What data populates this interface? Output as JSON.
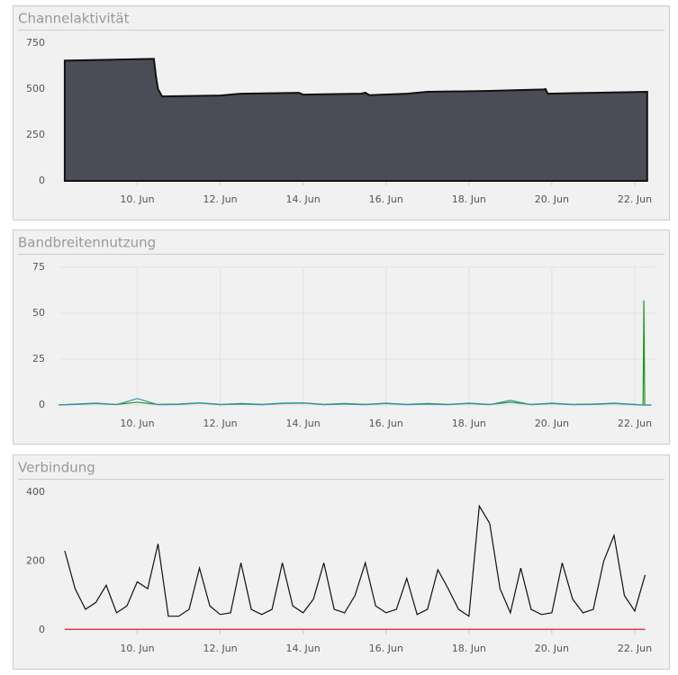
{
  "chart_data": [
    {
      "type": "area",
      "title": "Channelaktivität",
      "x": [
        8.25,
        10.4,
        10.45,
        10.5,
        10.6,
        12.0,
        12.5,
        13.9,
        14.0,
        15.4,
        15.5,
        15.6,
        16.5,
        17.0,
        18.5,
        19.8,
        19.85,
        19.9,
        21.0,
        22.3
      ],
      "series": [
        {
          "color": "#4a4d56",
          "values": [
            655,
            665,
            570,
            500,
            460,
            465,
            475,
            480,
            470,
            475,
            480,
            467,
            475,
            485,
            490,
            498,
            500,
            475,
            480,
            485
          ]
        }
      ],
      "xlim": [
        8.1,
        22.5
      ],
      "xticks": [
        {
          "value": 10,
          "label": "10. Jun"
        },
        {
          "value": 12,
          "label": "12. Jun"
        },
        {
          "value": 14,
          "label": "14. Jun"
        },
        {
          "value": 16,
          "label": "16. Jun"
        },
        {
          "value": 18,
          "label": "18. Jun"
        },
        {
          "value": 20,
          "label": "20. Jun"
        },
        {
          "value": 22,
          "label": "22. Jun"
        }
      ],
      "ylim": [
        0,
        750
      ],
      "yticks": [
        0,
        250,
        500,
        750
      ],
      "grid": false
    },
    {
      "type": "line",
      "title": "Bandbreitennutzung",
      "x": [
        8.1,
        8.5,
        9,
        9.5,
        10,
        10.5,
        11,
        11.5,
        12,
        12.5,
        13,
        13.5,
        14,
        14.5,
        15,
        15.5,
        16,
        16.5,
        17,
        17.5,
        18,
        18.5,
        19,
        19.5,
        20,
        20.5,
        21,
        21.5,
        22,
        22.2,
        22.22,
        22.24,
        22.4
      ],
      "series": [
        {
          "color": "#1a9a1a",
          "values": [
            0,
            0.5,
            1,
            0.3,
            1.5,
            0.3,
            0.5,
            1.2,
            0.3,
            0.8,
            0.3,
            1,
            1.2,
            0.3,
            0.8,
            0.3,
            1,
            0.3,
            0.8,
            0.3,
            1,
            0.3,
            1.5,
            0.3,
            1,
            0.3,
            0.5,
            1,
            0.3,
            0,
            57,
            0,
            0
          ]
        },
        {
          "color": "#3a8fb0",
          "values": [
            0,
            0.3,
            0.8,
            0.2,
            3.5,
            0.2,
            0.3,
            1,
            0.2,
            0.5,
            0.2,
            0.8,
            1,
            0.2,
            0.5,
            0.2,
            0.8,
            0.2,
            0.5,
            0.2,
            0.8,
            0.2,
            2.5,
            0.2,
            0.8,
            0.2,
            0.3,
            0.8,
            0.2,
            0,
            0,
            0,
            0
          ]
        }
      ],
      "xlim": [
        8.1,
        22.5
      ],
      "xticks": [
        {
          "value": 10,
          "label": "10. Jun"
        },
        {
          "value": 12,
          "label": "12. Jun"
        },
        {
          "value": 14,
          "label": "14. Jun"
        },
        {
          "value": 16,
          "label": "16. Jun"
        },
        {
          "value": 18,
          "label": "18. Jun"
        },
        {
          "value": 20,
          "label": "20. Jun"
        },
        {
          "value": 22,
          "label": "22. Jun"
        }
      ],
      "ylim": [
        0,
        75
      ],
      "yticks": [
        0,
        25,
        50,
        75
      ],
      "grid": true
    },
    {
      "type": "line",
      "title": "Verbindung",
      "x": [
        8.25,
        8.5,
        8.75,
        9,
        9.25,
        9.5,
        9.75,
        10,
        10.25,
        10.5,
        10.75,
        11,
        11.25,
        11.5,
        11.75,
        12,
        12.25,
        12.5,
        12.75,
        13,
        13.25,
        13.5,
        13.75,
        14,
        14.25,
        14.5,
        14.75,
        15,
        15.25,
        15.5,
        15.75,
        16,
        16.25,
        16.5,
        16.75,
        17,
        17.25,
        17.5,
        17.75,
        18,
        18.25,
        18.5,
        18.75,
        19,
        19.25,
        19.5,
        19.75,
        20,
        20.25,
        20.5,
        20.75,
        21,
        21.25,
        21.5,
        21.75,
        22,
        22.25
      ],
      "series": [
        {
          "color": "#111111",
          "values": [
            230,
            120,
            60,
            80,
            130,
            50,
            70,
            140,
            120,
            250,
            40,
            40,
            60,
            180,
            70,
            45,
            50,
            195,
            60,
            45,
            60,
            195,
            70,
            50,
            90,
            195,
            60,
            50,
            100,
            195,
            70,
            50,
            60,
            150,
            45,
            60,
            175,
            120,
            60,
            40,
            360,
            310,
            120,
            50,
            180,
            60,
            45,
            50,
            195,
            90,
            50,
            60,
            200,
            275,
            100,
            55,
            160
          ]
        },
        {
          "color": "#d0203a",
          "values": [
            2,
            2,
            2,
            2,
            2,
            2,
            2,
            2,
            2,
            2,
            2,
            2,
            2,
            2,
            2,
            2,
            2,
            2,
            2,
            2,
            2,
            2,
            2,
            2,
            2,
            2,
            2,
            2,
            2,
            2,
            2,
            2,
            2,
            2,
            2,
            2,
            2,
            2,
            2,
            2,
            2,
            2,
            2,
            2,
            2,
            2,
            2,
            2,
            2,
            2,
            2,
            2,
            2,
            2,
            2,
            2,
            2
          ]
        }
      ],
      "xlim": [
        8.1,
        22.5
      ],
      "xticks": [
        {
          "value": 10,
          "label": "10. Jun"
        },
        {
          "value": 12,
          "label": "12. Jun"
        },
        {
          "value": 14,
          "label": "14. Jun"
        },
        {
          "value": 16,
          "label": "16. Jun"
        },
        {
          "value": 18,
          "label": "18. Jun"
        },
        {
          "value": 20,
          "label": "20. Jun"
        },
        {
          "value": 22,
          "label": "22. Jun"
        }
      ],
      "ylim": [
        0,
        400
      ],
      "yticks": [
        0,
        200,
        400
      ],
      "grid": false
    }
  ]
}
